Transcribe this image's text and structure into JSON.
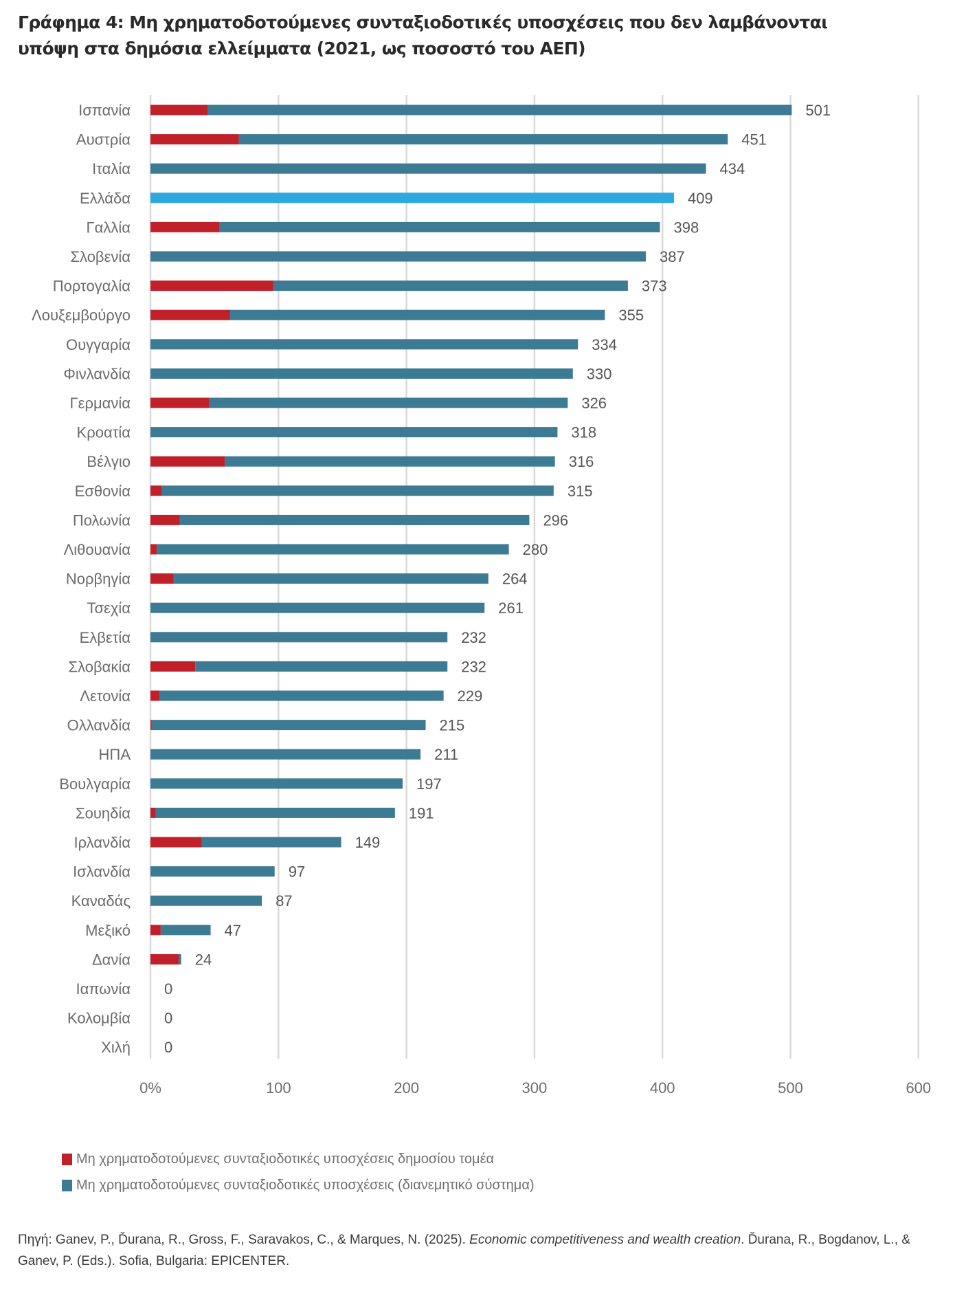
{
  "title": {
    "line1": "Γράφημα 4: Μη χρηματοδοτούμενες συνταξιοδοτικές υποσχέσεις που δεν λαμβάνονται",
    "line2": "υπόψη στα δημόσια ελλείμματα (2021, ως ποσοστό του ΑΕΠ)"
  },
  "colors": {
    "public_sector": "#c0202a",
    "pay_as_you_go": "#3d7a94",
    "highlight": "#2ea9e0",
    "grid": "#d9d9d9"
  },
  "chart_data": {
    "type": "bar",
    "orientation": "horizontal",
    "stacked": true,
    "title": "Γράφημα 4: Μη χρηματοδοτούμενες συνταξιοδοτικές υποσχέσεις που δεν λαμβάνονται υπόψη στα δημόσια ελλείμματα (2021, ως ποσοστό του ΑΕΠ)",
    "xlabel": "",
    "ylabel": "",
    "xlim": [
      0,
      600
    ],
    "x_ticks": [
      "0%",
      "100",
      "200",
      "300",
      "400",
      "500",
      "600"
    ],
    "x_tick_values": [
      0,
      100,
      200,
      300,
      400,
      500,
      600
    ],
    "grid": true,
    "legend_position": "bottom-left",
    "highlight_category": "Ελλάδα",
    "categories": [
      "Ισπανία",
      "Αυστρία",
      "Ιταλία",
      "Ελλάδα",
      "Γαλλία",
      "Σλοβενία",
      "Πορτογαλία",
      "Λουξεμβούργο",
      "Ουγγαρία",
      "Φινλανδία",
      "Γερμανία",
      "Κροατία",
      "Βέλγιο",
      "Εσθονία",
      "Πολωνία",
      "Λιθουανία",
      "Νορβηγία",
      "Τσεχία",
      "Ελβετία",
      "Σλοβακία",
      "Λετονία",
      "Ολλανδία",
      "ΗΠΑ",
      "Βουλγαρία",
      "Σουηδία",
      "Ιρλανδία",
      "Ισλανδία",
      "Καναδάς",
      "Μεξικό",
      "Δανία",
      "Ιαπωνία",
      "Κολομβία",
      "Χιλή"
    ],
    "totals": [
      501,
      451,
      434,
      409,
      398,
      387,
      373,
      355,
      334,
      330,
      326,
      318,
      316,
      315,
      296,
      280,
      264,
      261,
      232,
      232,
      229,
      215,
      211,
      197,
      191,
      149,
      97,
      87,
      47,
      24,
      0,
      0,
      0
    ],
    "total_labels": [
      "501",
      "451",
      "434",
      "409",
      "398",
      "387",
      "373",
      "355",
      "334",
      "330",
      "326",
      "318",
      "316",
      "315",
      "296",
      "280",
      "264",
      "261",
      "232",
      "232",
      "229",
      "215",
      "211",
      "197",
      "191",
      "149",
      "97",
      "87",
      "47",
      "24",
      "0",
      "0",
      "0"
    ],
    "series": [
      {
        "name": "Μη χρηματοδοτούμενες συνταξιοδοτικές υποσχέσεις δημοσίου τομέα",
        "values": [
          45,
          69,
          0,
          0,
          54,
          0,
          96,
          62,
          0,
          0,
          46,
          0,
          58,
          9,
          23,
          5,
          18,
          0,
          0,
          35,
          7,
          1,
          0,
          0,
          4,
          40,
          0,
          0,
          8,
          22,
          0,
          0,
          0
        ]
      },
      {
        "name": "Μη χρηματοδοτούμενες συνταξιοδοτικές υποσχέσεις (διανεμητικό σύστημα)",
        "values": [
          456,
          382,
          434,
          409,
          344,
          387,
          277,
          293,
          334,
          330,
          280,
          318,
          258,
          306,
          273,
          275,
          246,
          261,
          232,
          197,
          222,
          214,
          211,
          197,
          187,
          109,
          97,
          87,
          39,
          2,
          0,
          0,
          0
        ]
      }
    ]
  },
  "legend": {
    "items": [
      {
        "label": "Μη χρηματοδοτούμενες συνταξιοδοτικές υποσχέσεις δημοσίου τομέα"
      },
      {
        "label": "Μη χρηματοδοτούμενες συνταξιοδοτικές υποσχέσεις (διανεμητικό σύστημα)"
      }
    ]
  },
  "source": {
    "prefix": "Πηγή: Ganev, P., Ďurana, R., Gross, F., Saravakos, C., & Marques, N. (2025). ",
    "italic": "Economic competitiveness and wealth creation",
    "suffix": ". Ďurana, R., Bogdanov, L., & Ganev, P. (Eds.). Sofia, Bulgaria: EPICENTER."
  }
}
